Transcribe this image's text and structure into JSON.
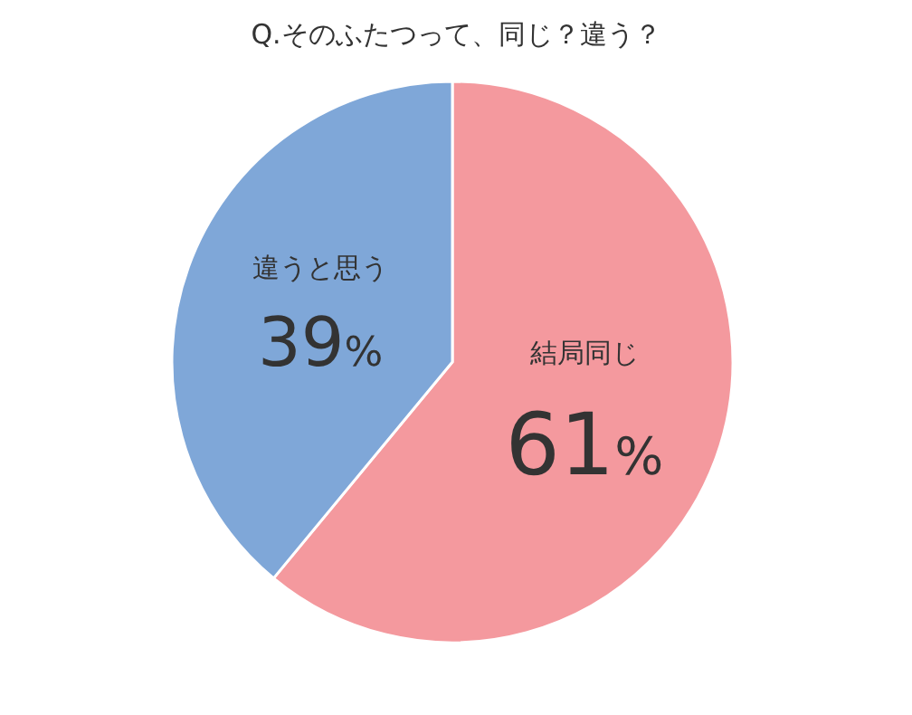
{
  "chart_data": {
    "type": "pie",
    "title": "Q.そのふたつって、同じ？違う？",
    "categories": [
      "結局同じ",
      "違うと思う"
    ],
    "values": [
      61,
      39
    ],
    "colors": [
      "#f4999e",
      "#7fa7d8"
    ],
    "value_labels": [
      "61%",
      "39%"
    ]
  }
}
